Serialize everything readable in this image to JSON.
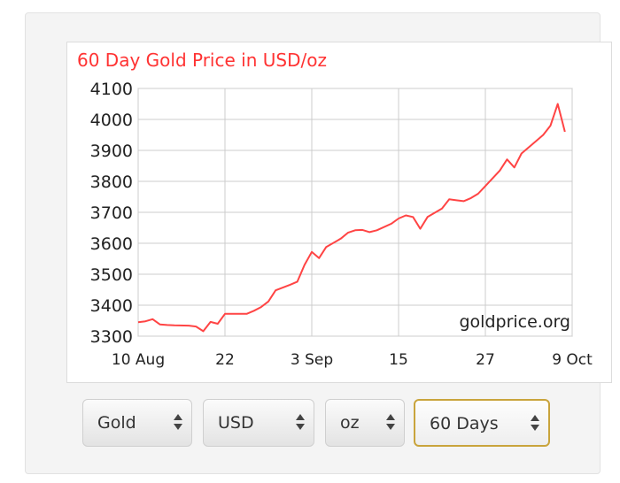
{
  "chart_data": {
    "type": "line",
    "title": "60 Day Gold Price in USD/oz",
    "watermark": "goldprice.org",
    "xlabel": "",
    "ylabel": "",
    "ylim": [
      3300,
      4100
    ],
    "yticks": [
      3300,
      3400,
      3500,
      3600,
      3700,
      3800,
      3900,
      4000,
      4100
    ],
    "xlim": [
      "2025-08-10",
      "2025-10-09"
    ],
    "xticks": [
      {
        "date": "2025-08-10",
        "label": "10 Aug"
      },
      {
        "date": "2025-08-22",
        "label": "22"
      },
      {
        "date": "2025-09-03",
        "label": "3 Sep"
      },
      {
        "date": "2025-09-15",
        "label": "15"
      },
      {
        "date": "2025-09-27",
        "label": "27"
      },
      {
        "date": "2025-10-09",
        "label": "9 Oct"
      }
    ],
    "grid": true,
    "line_color": "#ff4444",
    "series": [
      {
        "points": [
          [
            "2025-08-10",
            3345
          ],
          [
            "2025-08-11",
            3348
          ],
          [
            "2025-08-12",
            3355
          ],
          [
            "2025-08-13",
            3338
          ],
          [
            "2025-08-14",
            3336
          ],
          [
            "2025-08-15",
            3335
          ],
          [
            "2025-08-17",
            3334
          ],
          [
            "2025-08-18",
            3331
          ],
          [
            "2025-08-19",
            3316
          ],
          [
            "2025-08-20",
            3346
          ],
          [
            "2025-08-21",
            3340
          ],
          [
            "2025-08-22",
            3372
          ],
          [
            "2025-08-23",
            3372
          ],
          [
            "2025-08-25",
            3372
          ],
          [
            "2025-08-26",
            3382
          ],
          [
            "2025-08-27",
            3394
          ],
          [
            "2025-08-28",
            3412
          ],
          [
            "2025-08-29",
            3448
          ],
          [
            "2025-08-31",
            3466
          ],
          [
            "2025-09-01",
            3476
          ],
          [
            "2025-09-02",
            3530
          ],
          [
            "2025-09-03",
            3572
          ],
          [
            "2025-09-04",
            3552
          ],
          [
            "2025-09-05",
            3588
          ],
          [
            "2025-09-07",
            3615
          ],
          [
            "2025-09-08",
            3634
          ],
          [
            "2025-09-09",
            3642
          ],
          [
            "2025-09-10",
            3643
          ],
          [
            "2025-09-11",
            3636
          ],
          [
            "2025-09-12",
            3642
          ],
          [
            "2025-09-14",
            3663
          ],
          [
            "2025-09-15",
            3680
          ],
          [
            "2025-09-16",
            3690
          ],
          [
            "2025-09-17",
            3685
          ],
          [
            "2025-09-18",
            3647
          ],
          [
            "2025-09-19",
            3685
          ],
          [
            "2025-09-21",
            3712
          ],
          [
            "2025-09-22",
            3742
          ],
          [
            "2025-09-23",
            3739
          ],
          [
            "2025-09-24",
            3736
          ],
          [
            "2025-09-25",
            3746
          ],
          [
            "2025-09-26",
            3760
          ],
          [
            "2025-09-27",
            3785
          ],
          [
            "2025-09-29",
            3835
          ],
          [
            "2025-09-30",
            3871
          ],
          [
            "2025-10-01",
            3845
          ],
          [
            "2025-10-02",
            3890
          ],
          [
            "2025-10-04",
            3930
          ],
          [
            "2025-10-05",
            3950
          ],
          [
            "2025-10-06",
            3980
          ],
          [
            "2025-10-07",
            4050
          ],
          [
            "2025-10-08",
            3960
          ]
        ]
      }
    ]
  },
  "controls": {
    "metal": "Gold",
    "currency": "USD",
    "unit": "oz",
    "period": "60 Days"
  }
}
